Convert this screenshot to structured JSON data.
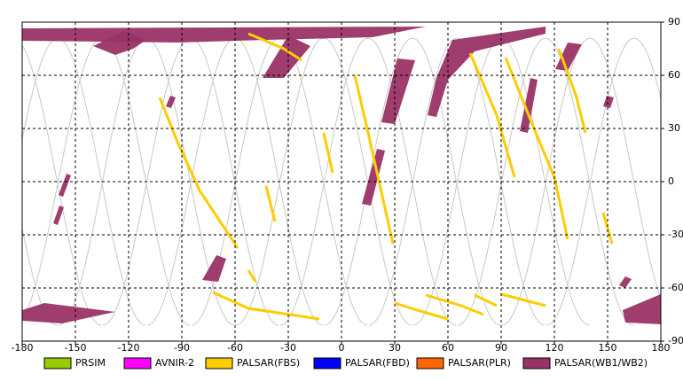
{
  "chart_data": {
    "type": "map",
    "xlim": [
      -180,
      180
    ],
    "xticks": [
      -180,
      -150,
      -120,
      -90,
      -60,
      -30,
      0,
      30,
      60,
      90,
      120,
      150,
      180
    ],
    "ylim": [
      -90,
      90
    ],
    "yticks": [
      -90,
      -60,
      -30,
      0,
      30,
      60,
      90
    ],
    "grid": true,
    "series": [
      {
        "name": "PRSIM",
        "color": "#99cc00"
      },
      {
        "name": "AVNIR-2",
        "color": "#ff00ff"
      },
      {
        "name": "PALSAR(FBS)",
        "color": "#ffcc00"
      },
      {
        "name": "PALSAR(FBD)",
        "color": "#0000ff"
      },
      {
        "name": "PALSAR(PLR)",
        "color": "#ff6600"
      },
      {
        "name": "PALSAR(WB1/WB2)",
        "color": "#993366"
      }
    ]
  }
}
